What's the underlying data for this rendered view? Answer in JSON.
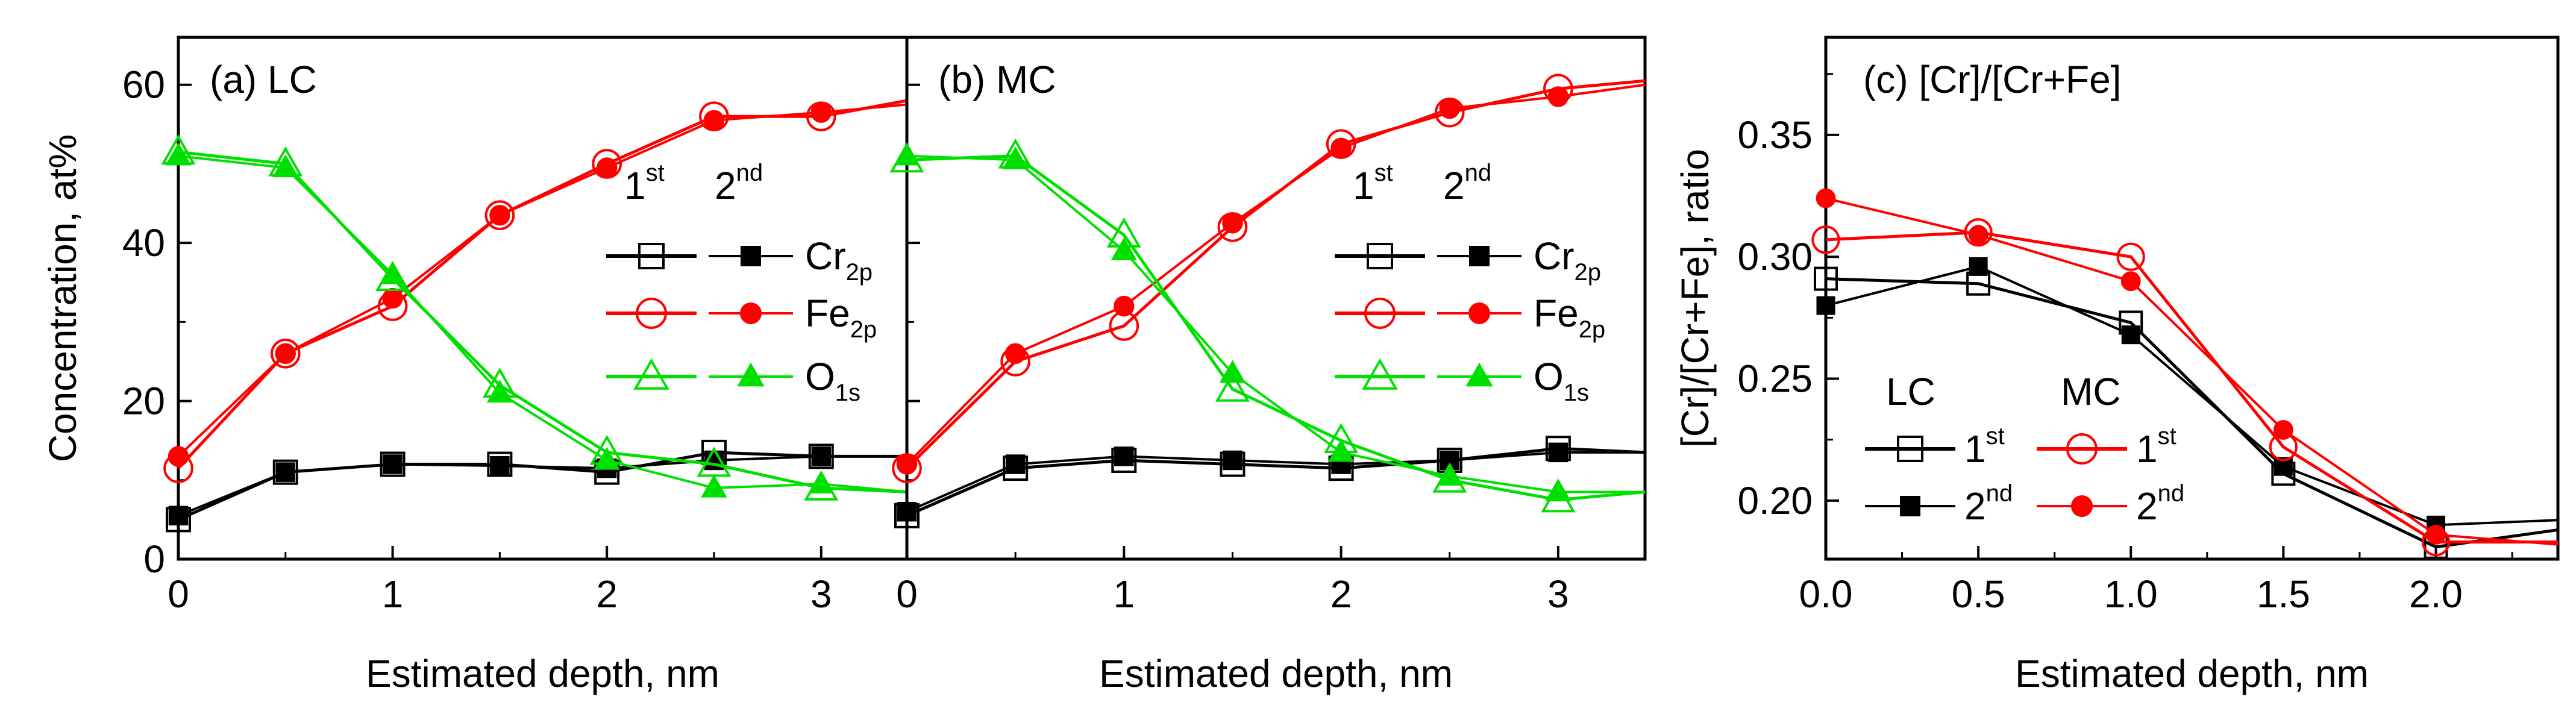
{
  "colors": {
    "black": "#000000",
    "red": "#ff0000",
    "green": "#00e000"
  },
  "chart_data": [
    {
      "type": "line",
      "panel": "a",
      "title": "(a) LC",
      "xlabel": "Estimated depth, nm",
      "ylabel": "Concentration, at%",
      "xlim": [
        0,
        3.4
      ],
      "ylim": [
        0,
        66
      ],
      "xticks": [
        "0",
        "1",
        "2",
        "3"
      ],
      "yticks": [
        "0",
        "20",
        "40",
        "60"
      ],
      "legend": {
        "placement": "right",
        "col1": "1",
        "col1_sup": "st",
        "col2": "2",
        "col2_sup": "nd"
      },
      "series": [
        {
          "name": "Cr2p 1st",
          "element": "Cr",
          "sub": "2p",
          "scan": "1st",
          "color": "#000000",
          "marker": "square-open",
          "x": [
            0,
            0.5,
            1.0,
            1.5,
            2.0,
            2.5,
            3.0,
            3.4
          ],
          "y": [
            5,
            11,
            12,
            12,
            11,
            13.5,
            13,
            13
          ]
        },
        {
          "name": "Cr2p 2nd",
          "element": "Cr",
          "sub": "2p",
          "scan": "2nd",
          "color": "#000000",
          "marker": "square-filled",
          "x": [
            0,
            0.5,
            1.0,
            1.5,
            2.0,
            2.5,
            3.0,
            3.4
          ],
          "y": [
            5.5,
            11,
            12,
            11.8,
            11.5,
            12.5,
            13,
            13
          ]
        },
        {
          "name": "Fe2p 1st",
          "element": "Fe",
          "sub": "2p",
          "scan": "1st",
          "color": "#ff0000",
          "marker": "circle-open",
          "x": [
            0,
            0.5,
            1.0,
            1.5,
            2.0,
            2.5,
            3.0,
            3.4
          ],
          "y": [
            11.5,
            26,
            32,
            43.5,
            50,
            56,
            56,
            58
          ]
        },
        {
          "name": "Fe2p 2nd",
          "element": "Fe",
          "sub": "2p",
          "scan": "2nd",
          "color": "#ff0000",
          "marker": "circle-filled",
          "x": [
            0,
            0.5,
            1.0,
            1.5,
            2.0,
            2.5,
            3.0,
            3.4
          ],
          "y": [
            13,
            26,
            33,
            43.5,
            49.5,
            55.5,
            56.5,
            57.5
          ]
        },
        {
          "name": "O1s 1st",
          "element": "O",
          "sub": "1s",
          "scan": "1st",
          "color": "#00e000",
          "marker": "triangle-open",
          "x": [
            0,
            0.5,
            1.0,
            1.5,
            2.0,
            2.5,
            3.0,
            3.4
          ],
          "y": [
            51.5,
            50,
            35.5,
            22,
            13.5,
            12,
            9,
            8.5
          ]
        },
        {
          "name": "O1s 2nd",
          "element": "O",
          "sub": "1s",
          "scan": "2nd",
          "color": "#00e000",
          "marker": "triangle-filled",
          "x": [
            0,
            0.5,
            1.0,
            1.5,
            2.0,
            2.5,
            3.0,
            3.4
          ],
          "y": [
            51,
            49.5,
            36,
            21,
            12.5,
            9,
            9.5,
            8.5
          ]
        }
      ]
    },
    {
      "type": "line",
      "panel": "b",
      "title": "(b) MC",
      "xlabel": "Estimated depth, nm",
      "ylabel": "",
      "xlim": [
        0,
        3.4
      ],
      "ylim": [
        0,
        66
      ],
      "xticks": [
        "0",
        "1",
        "2",
        "3"
      ],
      "yticks": [],
      "legend": {
        "placement": "right",
        "col1": "1",
        "col1_sup": "st",
        "col2": "2",
        "col2_sup": "nd"
      },
      "series": [
        {
          "name": "Cr2p 1st",
          "element": "Cr",
          "sub": "2p",
          "scan": "1st",
          "color": "#000000",
          "marker": "square-open",
          "x": [
            0,
            0.5,
            1.0,
            1.5,
            2.0,
            2.5,
            3.0,
            3.4
          ],
          "y": [
            5.5,
            11.5,
            12.5,
            12,
            11.5,
            12.5,
            14,
            13.5
          ]
        },
        {
          "name": "Cr2p 2nd",
          "element": "Cr",
          "sub": "2p",
          "scan": "2nd",
          "color": "#000000",
          "marker": "square-filled",
          "x": [
            0,
            0.5,
            1.0,
            1.5,
            2.0,
            2.5,
            3.0,
            3.4
          ],
          "y": [
            6,
            12,
            13,
            12.5,
            12,
            12.5,
            13.5,
            13.5
          ]
        },
        {
          "name": "Fe2p 1st",
          "element": "Fe",
          "sub": "2p",
          "scan": "1st",
          "color": "#ff0000",
          "marker": "circle-open",
          "x": [
            0,
            0.5,
            1.0,
            1.5,
            2.0,
            2.5,
            3.0,
            3.4
          ],
          "y": [
            11.5,
            25,
            29.5,
            42,
            52.5,
            56.5,
            59.5,
            60.5
          ]
        },
        {
          "name": "Fe2p 2nd",
          "element": "Fe",
          "sub": "2p",
          "scan": "2nd",
          "color": "#ff0000",
          "marker": "circle-filled",
          "x": [
            0,
            0.5,
            1.0,
            1.5,
            2.0,
            2.5,
            3.0,
            3.4
          ],
          "y": [
            12,
            26,
            32,
            42.5,
            52,
            57,
            58.5,
            60
          ]
        },
        {
          "name": "O1s 1st",
          "element": "O",
          "sub": "1s",
          "scan": "1st",
          "color": "#00e000",
          "marker": "triangle-open",
          "x": [
            0,
            0.5,
            1.0,
            1.5,
            2.0,
            2.5,
            3.0,
            3.4
          ],
          "y": [
            50.5,
            51,
            41,
            21.5,
            15,
            10,
            7.5,
            8.5
          ]
        },
        {
          "name": "O1s 2nd",
          "element": "O",
          "sub": "1s",
          "scan": "2nd",
          "color": "#00e000",
          "marker": "triangle-filled",
          "x": [
            0,
            0.5,
            1.0,
            1.5,
            2.0,
            2.5,
            3.0,
            3.4
          ],
          "y": [
            51,
            50.5,
            39,
            23.5,
            13.5,
            10.5,
            8.5,
            8.5
          ]
        }
      ]
    },
    {
      "type": "line",
      "panel": "c",
      "title": "(c) [Cr]/[Cr+Fe]",
      "xlabel": "Estimated depth, nm",
      "ylabel": "[Cr]/[Cr+Fe], ratio",
      "xlim": [
        0,
        2.4
      ],
      "ylim": [
        0.176,
        0.39
      ],
      "xticks": [
        "0.0",
        "0.5",
        "1.0",
        "1.5",
        "2.0"
      ],
      "yticks": [
        "0.20",
        "0.25",
        "0.30",
        "0.35"
      ],
      "legend": {
        "placement": "bottom-left",
        "group1": "LC",
        "group2": "MC",
        "row1": "1",
        "row1_sup": "st",
        "row2": "2",
        "row2_sup": "nd"
      },
      "series": [
        {
          "name": "LC 1st",
          "color": "#000000",
          "marker": "square-open",
          "x": [
            0,
            0.5,
            1.0,
            1.5,
            2.0,
            2.4
          ],
          "y": [
            0.291,
            0.289,
            0.273,
            0.211,
            0.181,
            0.188
          ]
        },
        {
          "name": "LC 2nd",
          "color": "#000000",
          "marker": "square-filled",
          "x": [
            0,
            0.5,
            1.0,
            1.5,
            2.0,
            2.4
          ],
          "y": [
            0.28,
            0.296,
            0.268,
            0.214,
            0.19,
            0.192
          ]
        },
        {
          "name": "MC 1st",
          "color": "#ff0000",
          "marker": "circle-open",
          "x": [
            0,
            0.5,
            1.0,
            1.5,
            2.0,
            2.4
          ],
          "y": [
            0.307,
            0.31,
            0.3,
            0.222,
            0.183,
            0.183
          ]
        },
        {
          "name": "MC 2nd",
          "color": "#ff0000",
          "marker": "circle-filled",
          "x": [
            0,
            0.5,
            1.0,
            1.5,
            2.0,
            2.4
          ],
          "y": [
            0.324,
            0.309,
            0.29,
            0.229,
            0.186,
            0.182
          ]
        }
      ]
    }
  ]
}
